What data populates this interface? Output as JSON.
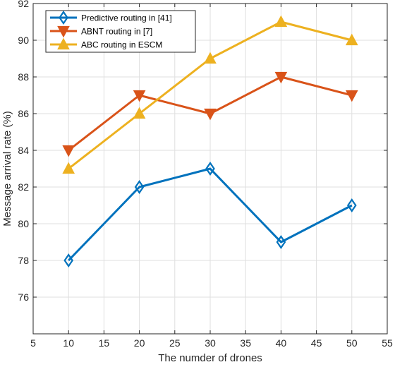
{
  "chart_data": {
    "type": "line",
    "xlabel": "The numder of drones",
    "ylabel": "Message arrival rate (%)",
    "xlim": [
      5,
      55
    ],
    "ylim": [
      74,
      92
    ],
    "xticks": [
      5,
      10,
      15,
      20,
      25,
      30,
      35,
      40,
      45,
      50,
      55
    ],
    "yticks": [
      76,
      78,
      80,
      82,
      84,
      86,
      88,
      90,
      92
    ],
    "grid": true,
    "legend_position": "top-left",
    "x": [
      10,
      20,
      30,
      40,
      50
    ],
    "series": [
      {
        "name": "Predictive routing in [41]",
        "values": [
          78,
          82,
          83,
          79,
          81
        ],
        "color": "#0072BD",
        "marker": "diamond"
      },
      {
        "name": "ABNT routing in [7]",
        "values": [
          84,
          87,
          86,
          88,
          87
        ],
        "color": "#D95319",
        "marker": "triangle-down"
      },
      {
        "name": "ABC routing in ESCM",
        "values": [
          83,
          86,
          89,
          91,
          90
        ],
        "color": "#EDB120",
        "marker": "triangle-up"
      }
    ]
  }
}
